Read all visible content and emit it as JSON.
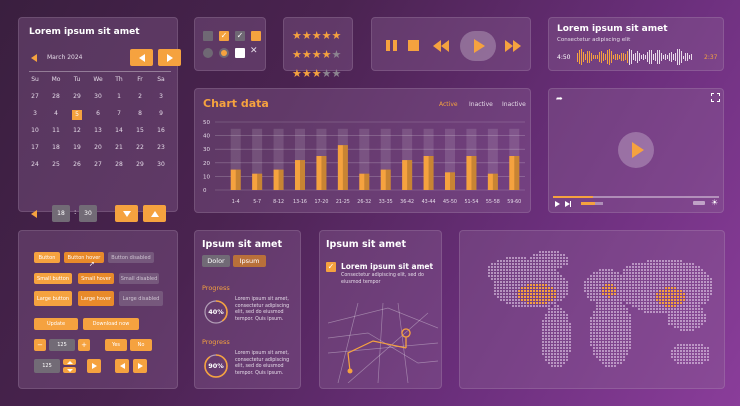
{
  "calendar": {
    "title": "Lorem ipsum sit amet",
    "month": "March 2024",
    "weekdays": [
      "Su",
      "Mo",
      "Tu",
      "We",
      "Th",
      "Fr",
      "Sa"
    ],
    "days": [
      "27",
      "28",
      "29",
      "30",
      "1",
      "2",
      "3",
      "3",
      "4",
      "5",
      "6",
      "7",
      "8",
      "9",
      "10",
      "11",
      "12",
      "13",
      "14",
      "15",
      "16",
      "17",
      "18",
      "19",
      "20",
      "21",
      "22",
      "23",
      "24",
      "25",
      "26",
      "27",
      "28",
      "29",
      "30"
    ],
    "selected_day": "5",
    "time_hour": "18",
    "time_sep": ":",
    "time_min": "30"
  },
  "rating": {
    "rows": [
      5,
      4,
      3
    ]
  },
  "player": {},
  "audio": {
    "title": "Lorem ipsum sit amet",
    "subtitle": "Consectetur adipiscing elit",
    "current": "4:50",
    "total": "2:37"
  },
  "chart": {
    "title": "Chart data",
    "tabs": [
      "Active",
      "Inactive",
      "Inactive"
    ],
    "active_color": "#f5a23f"
  },
  "chart_data": {
    "type": "bar",
    "categories": [
      "1-4",
      "5-7",
      "8-12",
      "13-16",
      "17-20",
      "21-25",
      "26-32",
      "33-35",
      "36-42",
      "43-44",
      "45-50",
      "51-54",
      "55-58",
      "59-60"
    ],
    "values": [
      15,
      12,
      15,
      22,
      25,
      33,
      12,
      15,
      22,
      25,
      13,
      25,
      12,
      25
    ],
    "ylim": [
      0,
      50
    ],
    "yticks": [
      "50",
      "40",
      "30",
      "20",
      "10",
      "0"
    ],
    "bar_color": "#f5a23f",
    "grid": true
  },
  "video": {
    "progress": 0.24
  },
  "buttons": {
    "row1": [
      "Button",
      "Button hover",
      "Button disabled"
    ],
    "row2": [
      "Small button",
      "Small hover",
      "Small disabled"
    ],
    "row3": [
      "Large button",
      "Large hover",
      "Large disabled"
    ],
    "row4": [
      "Update",
      "Download now"
    ],
    "stepper_value": "125",
    "yes": "Yes",
    "no": "No",
    "select_value": "125"
  },
  "progress": {
    "title": "Ipsum sit amet",
    "tags": [
      "Dolor",
      "Ipsum"
    ],
    "items": [
      {
        "label": "Progress",
        "percent": "40%",
        "value": 0.4,
        "text": "Lorem ipsum sit amet, consectetur adipiscing elit, sed do eiusmod tempor. Quis ipsum."
      },
      {
        "label": "Progress",
        "percent": "90%",
        "value": 0.9,
        "text": "Lorem ipsum sit amet, consectetur adipiscing elit, sed do eiusmod tempor. Quis ipsum."
      }
    ]
  },
  "mapcard": {
    "title": "Ipsum sit amet",
    "check_title": "Lorem ipsum sit amet",
    "check_text": "Consectetur adipiscing elit, sed do eiusmod tempor"
  },
  "world": {}
}
